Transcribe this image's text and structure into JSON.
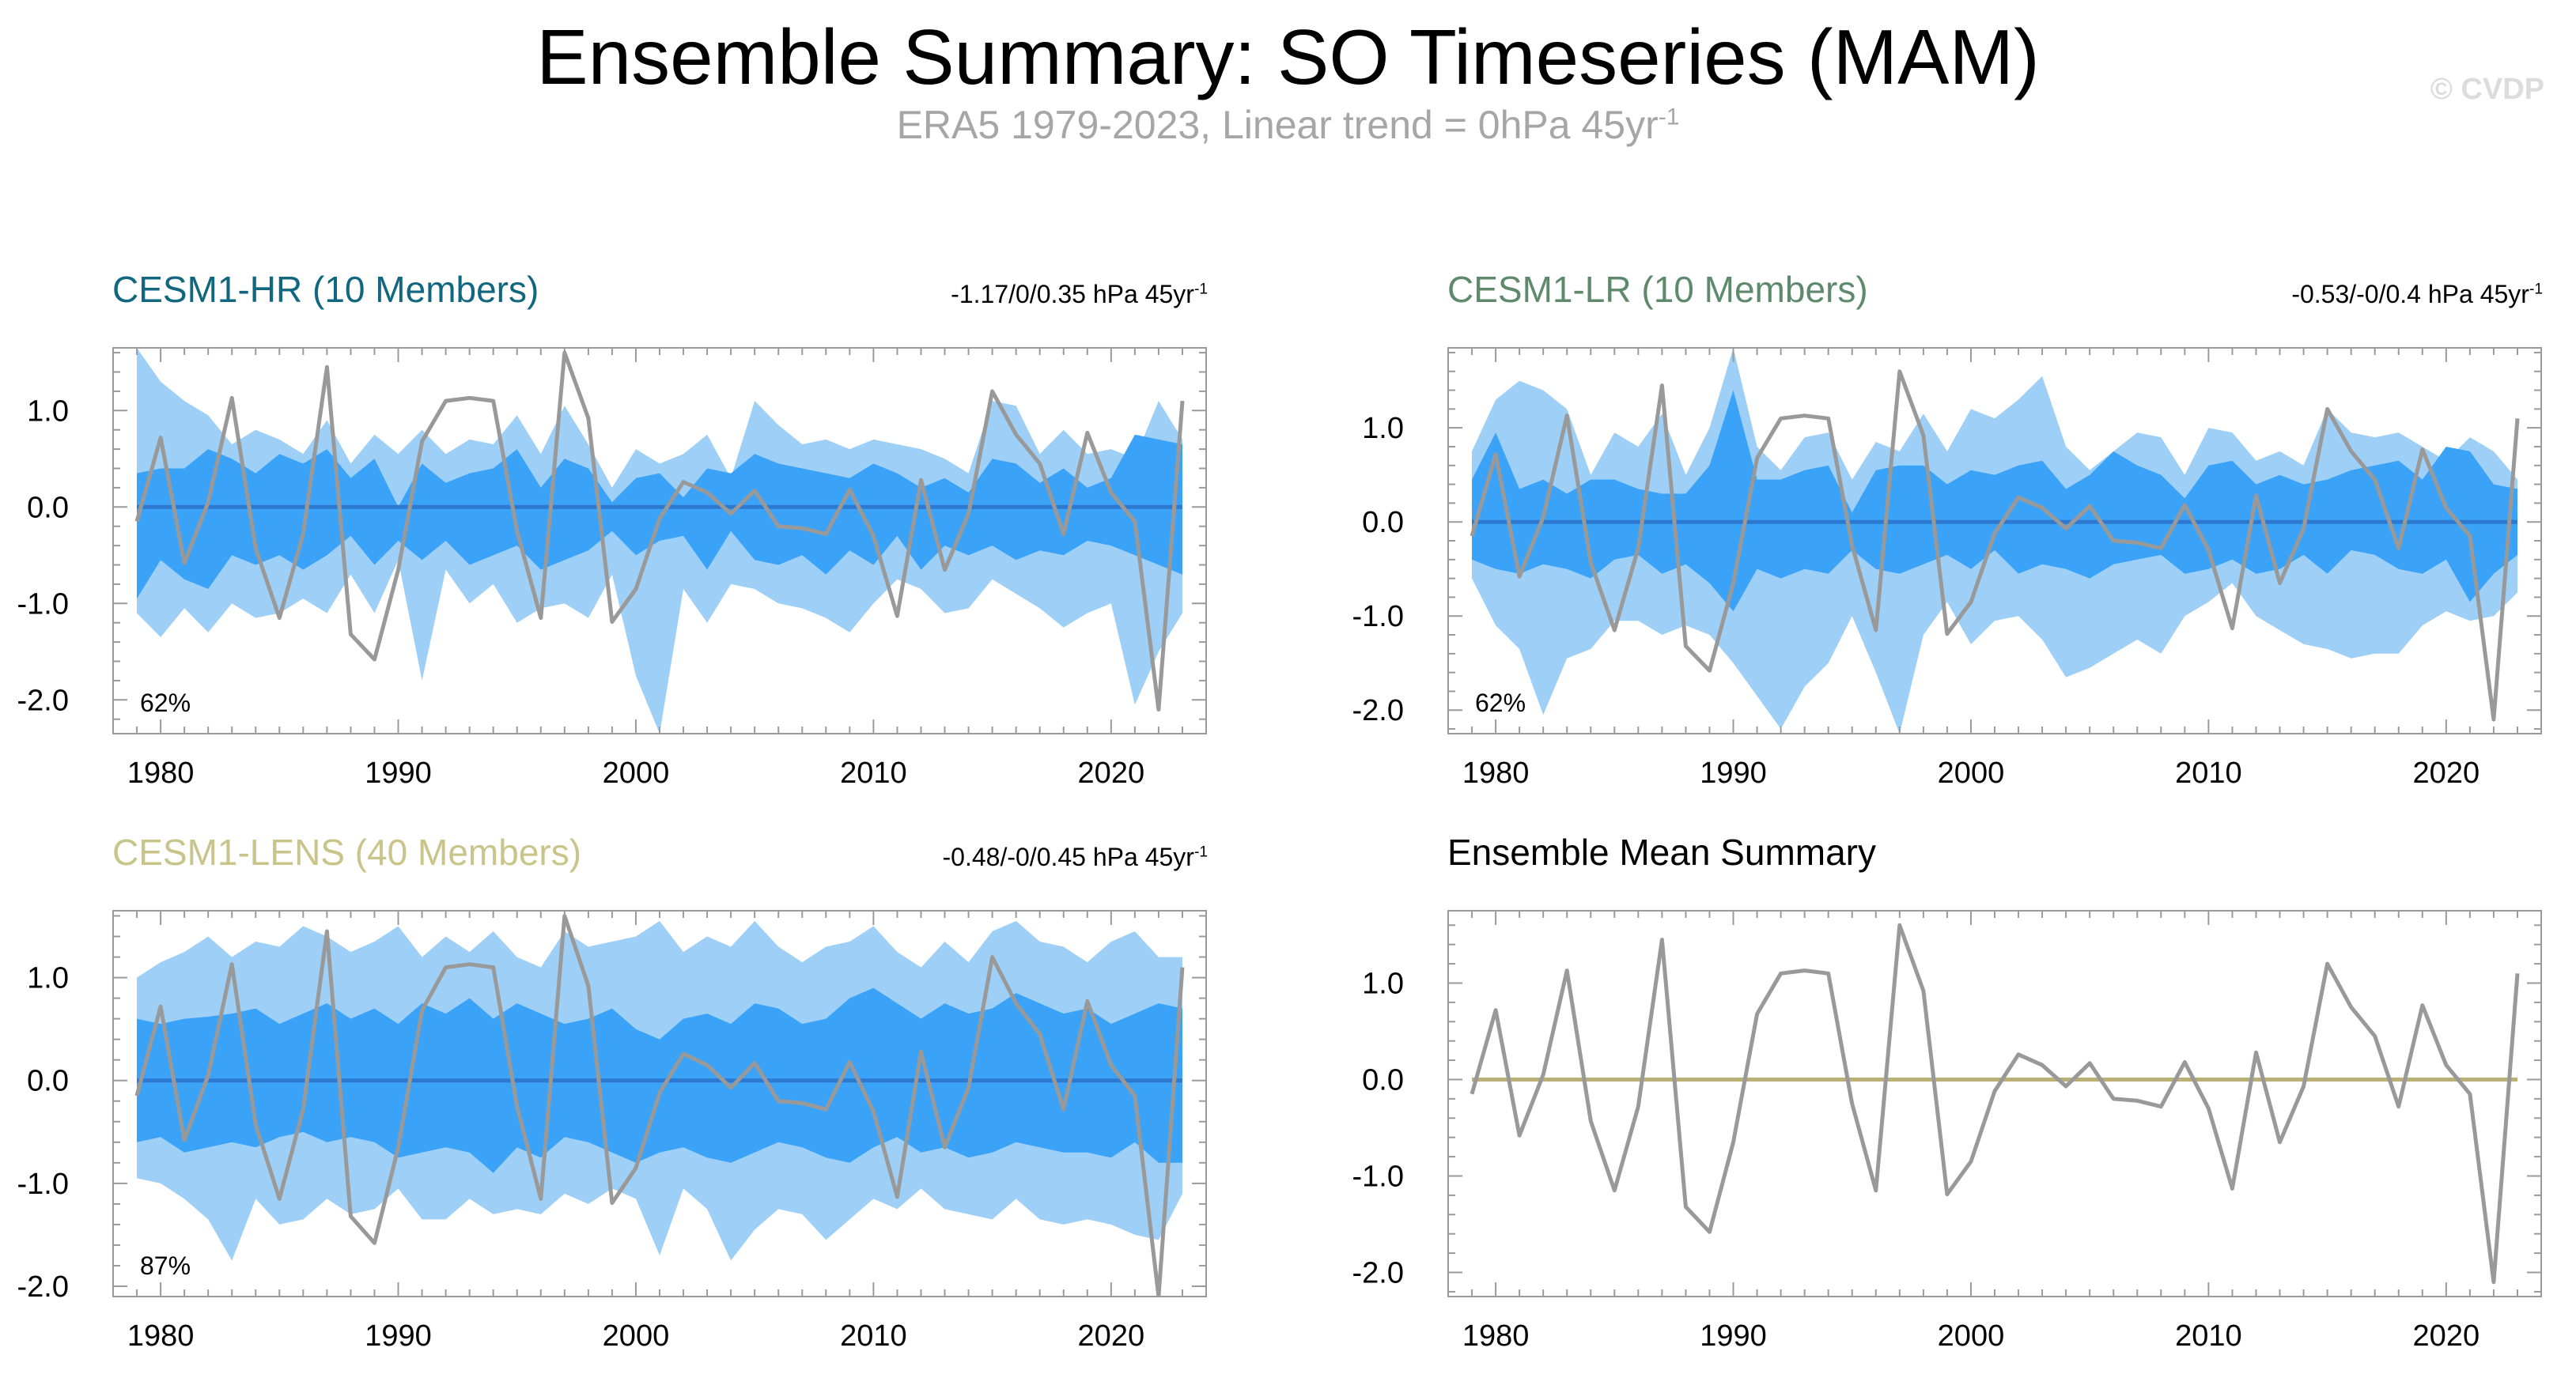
{
  "title": "Ensemble Summary: SO Timeseries (MAM)",
  "subtitle": {
    "text": "ERA5 1979-2023, Linear trend = 0hPa 45yr",
    "sup": "-1"
  },
  "watermark": "© CVDP",
  "colors": {
    "outer_band": "#9ecff7",
    "inner_band": "#3ba3f7",
    "ens_line": "#2d79d0",
    "obs_line": "#999999",
    "mean_line": "#bab075",
    "hr_title": "#11677f",
    "lr_title": "#5e8a6b",
    "lens_title": "#c8c48a",
    "mean_title": "#000000"
  },
  "chart_data": [
    {
      "type": "area",
      "id": "hr",
      "title": "CESM1-HR (10 Members)",
      "trend": {
        "text": "-1.17/0/0.35 hPa 45yr",
        "sup": "-1"
      },
      "percent": "62%",
      "x_range": [
        1978,
        2024
      ],
      "ylim": [
        -2.35,
        1.65
      ],
      "yticks": [
        -2.0,
        -1.0,
        0.0,
        1.0
      ],
      "ytick_labels": [
        "-2.0",
        "-1.0",
        "0.0",
        "1.0"
      ],
      "xticks": [
        1980,
        1990,
        2000,
        2010,
        2020
      ],
      "xtick_labels": [
        "1980",
        "1990",
        "2000",
        "2010",
        "2020"
      ],
      "years": [
        1979,
        1980,
        1981,
        1982,
        1983,
        1984,
        1985,
        1986,
        1987,
        1988,
        1989,
        1990,
        1991,
        1992,
        1993,
        1994,
        1995,
        1996,
        1997,
        1998,
        1999,
        2000,
        2001,
        2002,
        2003,
        2004,
        2005,
        2006,
        2007,
        2008,
        2009,
        2010,
        2011,
        2012,
        2013,
        2014,
        2015,
        2016,
        2017,
        2018,
        2019,
        2020,
        2021,
        2022,
        2023
      ],
      "outer_high": [
        1.65,
        1.3,
        1.1,
        0.95,
        0.65,
        0.8,
        0.7,
        0.55,
        0.9,
        0.45,
        0.75,
        0.55,
        0.8,
        0.55,
        0.7,
        0.65,
        0.95,
        0.55,
        1.05,
        0.65,
        0.2,
        0.6,
        0.45,
        0.55,
        0.75,
        0.3,
        1.1,
        0.85,
        0.65,
        0.7,
        0.6,
        0.7,
        0.65,
        0.6,
        0.5,
        0.35,
        1.1,
        1.05,
        0.55,
        0.8,
        0.55,
        0.6,
        0.5,
        1.1,
        0.7
      ],
      "inner_high": [
        0.35,
        0.4,
        0.4,
        0.6,
        0.5,
        0.35,
        0.55,
        0.45,
        0.6,
        0.3,
        0.5,
        0.0,
        0.45,
        0.25,
        0.35,
        0.4,
        0.6,
        0.2,
        0.5,
        0.4,
        0.05,
        0.3,
        0.35,
        0.1,
        0.4,
        0.35,
        0.55,
        0.45,
        0.4,
        0.35,
        0.3,
        0.45,
        0.35,
        0.2,
        0.3,
        0.15,
        0.5,
        0.45,
        0.25,
        0.4,
        0.2,
        0.3,
        0.75,
        0.7,
        0.65
      ],
      "inner_low": [
        -0.95,
        -0.55,
        -0.75,
        -0.85,
        -0.5,
        -0.6,
        -0.5,
        -0.65,
        -0.5,
        -0.3,
        -0.6,
        -0.35,
        -0.55,
        -0.35,
        -0.6,
        -0.5,
        -0.4,
        -0.65,
        -0.55,
        -0.45,
        -0.25,
        -0.5,
        -0.35,
        -0.3,
        -0.65,
        -0.25,
        -0.55,
        -0.6,
        -0.5,
        -0.7,
        -0.45,
        -0.6,
        -0.3,
        -0.65,
        -0.4,
        -0.5,
        -0.4,
        -0.55,
        -0.45,
        -0.5,
        -0.35,
        -0.4,
        -0.5,
        -0.6,
        -0.7
      ],
      "outer_low": [
        -1.1,
        -1.35,
        -1.05,
        -1.3,
        -1.0,
        -1.15,
        -1.1,
        -0.95,
        -1.1,
        -0.7,
        -1.1,
        -0.55,
        -1.8,
        -0.65,
        -1.0,
        -0.8,
        -1.2,
        -1.05,
        -1.0,
        -1.15,
        -0.7,
        -1.75,
        -2.35,
        -0.85,
        -1.2,
        -0.8,
        -0.85,
        -1.0,
        -1.05,
        -1.15,
        -1.3,
        -1.0,
        -0.75,
        -0.85,
        -1.1,
        -1.05,
        -0.75,
        -0.9,
        -1.05,
        -1.25,
        -1.1,
        -1.0,
        -2.05,
        -1.5,
        -1.1
      ],
      "ens_mean": [
        0,
        0,
        0,
        0,
        0,
        0,
        0,
        0,
        0,
        0,
        0,
        0,
        0,
        0,
        0,
        0,
        0,
        0,
        0,
        0,
        0,
        0,
        0,
        0,
        0,
        0,
        0,
        0,
        0,
        0,
        0,
        0,
        0,
        0,
        0,
        0,
        0,
        0,
        0,
        0,
        0,
        0,
        0,
        0,
        0
      ],
      "obs": [
        -0.15,
        0.72,
        -0.58,
        0.05,
        1.13,
        -0.43,
        -1.15,
        -0.28,
        1.45,
        -1.32,
        -1.58,
        -0.65,
        0.68,
        1.1,
        1.13,
        1.1,
        -0.25,
        -1.15,
        1.6,
        0.92,
        -1.19,
        -0.85,
        -0.12,
        0.26,
        0.15,
        -0.07,
        0.17,
        -0.2,
        -0.22,
        -0.28,
        0.18,
        -0.3,
        -1.13,
        0.28,
        -0.65,
        -0.07,
        1.2,
        0.75,
        0.45,
        -0.28,
        0.77,
        0.15,
        -0.15,
        -2.1,
        1.1
      ]
    },
    {
      "type": "area",
      "id": "lr",
      "title": "CESM1-LR (10 Members)",
      "trend": {
        "text": "-0.53/-0/0.4 hPa 45yr",
        "sup": "-1"
      },
      "percent": "62%",
      "x_range": [
        1978,
        2024
      ],
      "ylim": [
        -2.25,
        1.85
      ],
      "yticks": [
        -2.0,
        -1.0,
        0.0,
        1.0
      ],
      "ytick_labels": [
        "-2.0",
        "-1.0",
        "0.0",
        "1.0"
      ],
      "xticks": [
        1980,
        1990,
        2000,
        2010,
        2020
      ],
      "xtick_labels": [
        "1980",
        "1990",
        "2000",
        "2010",
        "2020"
      ],
      "years": [
        1979,
        1980,
        1981,
        1982,
        1983,
        1984,
        1985,
        1986,
        1987,
        1988,
        1989,
        1990,
        1991,
        1992,
        1993,
        1994,
        1995,
        1996,
        1997,
        1998,
        1999,
        2000,
        2001,
        2002,
        2003,
        2004,
        2005,
        2006,
        2007,
        2008,
        2009,
        2010,
        2011,
        2012,
        2013,
        2014,
        2015,
        2016,
        2017,
        2018,
        2019,
        2020,
        2021,
        2022,
        2023
      ],
      "outer_high": [
        0.75,
        1.3,
        1.5,
        1.4,
        1.2,
        0.5,
        0.95,
        0.8,
        1.15,
        0.5,
        1.0,
        1.85,
        0.8,
        0.55,
        0.9,
        0.95,
        0.45,
        0.85,
        0.75,
        1.15,
        0.75,
        1.2,
        1.1,
        1.3,
        1.55,
        0.8,
        0.55,
        0.75,
        0.95,
        0.9,
        0.5,
        1.0,
        0.95,
        0.65,
        0.75,
        0.6,
        1.2,
        0.95,
        0.9,
        0.95,
        0.8,
        0.65,
        0.9,
        0.75,
        0.45
      ],
      "inner_high": [
        0.45,
        0.95,
        0.35,
        0.45,
        0.3,
        0.45,
        0.45,
        0.35,
        0.3,
        0.3,
        0.6,
        1.4,
        0.45,
        0.45,
        0.55,
        0.6,
        0.1,
        0.55,
        0.6,
        0.6,
        0.4,
        0.55,
        0.5,
        0.6,
        0.65,
        0.35,
        0.5,
        0.75,
        0.6,
        0.5,
        0.25,
        0.6,
        0.65,
        0.4,
        0.5,
        0.4,
        0.45,
        0.55,
        0.6,
        0.65,
        0.45,
        0.8,
        0.75,
        0.4,
        0.35
      ],
      "inner_low": [
        -0.4,
        -0.5,
        -0.55,
        -0.45,
        -0.5,
        -0.6,
        -0.4,
        -0.35,
        -0.55,
        -0.45,
        -0.65,
        -0.95,
        -0.5,
        -0.6,
        -0.5,
        -0.55,
        -0.3,
        -0.5,
        -0.55,
        -0.45,
        -0.35,
        -0.5,
        -0.3,
        -0.55,
        -0.45,
        -0.5,
        -0.6,
        -0.45,
        -0.4,
        -0.35,
        -0.55,
        -0.5,
        -0.4,
        -0.55,
        -0.5,
        -0.35,
        -0.55,
        -0.3,
        -0.35,
        -0.5,
        -0.55,
        -0.4,
        -0.85,
        -0.55,
        -0.35
      ],
      "outer_low": [
        -0.6,
        -1.1,
        -1.35,
        -2.05,
        -1.45,
        -1.35,
        -1.05,
        -1.05,
        -1.2,
        -1.1,
        -1.2,
        -1.5,
        -1.85,
        -2.2,
        -1.75,
        -1.5,
        -1.0,
        -1.6,
        -2.25,
        -1.2,
        -0.85,
        -1.3,
        -1.05,
        -1.0,
        -1.25,
        -1.65,
        -1.55,
        -1.4,
        -1.25,
        -1.4,
        -1.0,
        -0.85,
        -0.65,
        -1.0,
        -1.15,
        -1.3,
        -1.35,
        -1.45,
        -1.4,
        -1.4,
        -1.1,
        -0.95,
        -1.05,
        -1.0,
        -0.75
      ],
      "ens_mean": [
        0,
        0,
        0,
        0,
        0,
        0,
        0,
        0,
        0,
        0,
        0,
        0,
        0,
        0,
        0,
        0,
        0,
        0,
        0,
        0,
        0,
        0,
        0,
        0,
        0,
        0,
        0,
        0,
        0,
        0,
        0,
        0,
        0,
        0,
        0,
        0,
        0,
        0,
        0,
        0,
        0,
        0,
        0,
        0,
        0
      ],
      "obs": [
        -0.15,
        0.72,
        -0.58,
        0.05,
        1.13,
        -0.43,
        -1.15,
        -0.28,
        1.45,
        -1.32,
        -1.58,
        -0.65,
        0.68,
        1.1,
        1.13,
        1.1,
        -0.25,
        -1.15,
        1.6,
        0.92,
        -1.19,
        -0.85,
        -0.12,
        0.26,
        0.15,
        -0.07,
        0.17,
        -0.2,
        -0.22,
        -0.28,
        0.18,
        -0.3,
        -1.13,
        0.28,
        -0.65,
        -0.07,
        1.2,
        0.75,
        0.45,
        -0.28,
        0.77,
        0.15,
        -0.15,
        -2.1,
        1.1
      ]
    },
    {
      "type": "area",
      "id": "lens",
      "title": "CESM1-LENS (40 Members)",
      "trend": {
        "text": "-0.48/-0/0.45 hPa 45yr",
        "sup": "-1"
      },
      "percent": "87%",
      "x_range": [
        1978,
        2024
      ],
      "ylim": [
        -2.1,
        1.65
      ],
      "yticks": [
        -2.0,
        -1.0,
        0.0,
        1.0
      ],
      "ytick_labels": [
        "-2.0",
        "-1.0",
        "0.0",
        "1.0"
      ],
      "xticks": [
        1980,
        1990,
        2000,
        2010,
        2020
      ],
      "xtick_labels": [
        "1980",
        "1990",
        "2000",
        "2010",
        "2020"
      ],
      "years": [
        1979,
        1980,
        1981,
        1982,
        1983,
        1984,
        1985,
        1986,
        1987,
        1988,
        1989,
        1990,
        1991,
        1992,
        1993,
        1994,
        1995,
        1996,
        1997,
        1998,
        1999,
        2000,
        2001,
        2002,
        2003,
        2004,
        2005,
        2006,
        2007,
        2008,
        2009,
        2010,
        2011,
        2012,
        2013,
        2014,
        2015,
        2016,
        2017,
        2018,
        2019,
        2020,
        2021,
        2022,
        2023
      ],
      "outer_high": [
        1.0,
        1.15,
        1.25,
        1.4,
        1.2,
        1.35,
        1.3,
        1.5,
        1.4,
        1.25,
        1.35,
        1.5,
        1.2,
        1.4,
        1.25,
        1.45,
        1.2,
        1.1,
        1.45,
        1.3,
        1.35,
        1.4,
        1.55,
        1.25,
        1.4,
        1.3,
        1.55,
        1.3,
        1.15,
        1.3,
        1.35,
        1.5,
        1.25,
        1.1,
        1.35,
        1.15,
        1.45,
        1.55,
        1.35,
        1.3,
        1.15,
        1.35,
        1.45,
        1.2,
        1.2
      ],
      "inner_high": [
        0.6,
        0.55,
        0.6,
        0.62,
        0.65,
        0.7,
        0.55,
        0.65,
        0.75,
        0.6,
        0.7,
        0.55,
        0.75,
        0.65,
        0.8,
        0.6,
        0.75,
        0.65,
        0.55,
        0.6,
        0.7,
        0.5,
        0.4,
        0.6,
        0.65,
        0.55,
        0.75,
        0.7,
        0.55,
        0.6,
        0.8,
        0.9,
        0.75,
        0.6,
        0.75,
        0.65,
        0.7,
        0.85,
        0.75,
        0.65,
        0.7,
        0.55,
        0.65,
        0.75,
        0.7
      ],
      "inner_low": [
        -0.6,
        -0.55,
        -0.7,
        -0.65,
        -0.6,
        -0.65,
        -0.55,
        -0.5,
        -0.6,
        -0.55,
        -0.6,
        -0.75,
        -0.7,
        -0.65,
        -0.7,
        -0.9,
        -0.65,
        -0.75,
        -0.55,
        -0.6,
        -0.7,
        -0.8,
        -0.7,
        -0.65,
        -0.75,
        -0.8,
        -0.7,
        -0.6,
        -0.65,
        -0.75,
        -0.8,
        -0.65,
        -0.55,
        -0.7,
        -0.65,
        -0.75,
        -0.7,
        -0.6,
        -0.65,
        -0.7,
        -0.7,
        -0.75,
        -0.6,
        -0.8,
        -0.8
      ],
      "outer_low": [
        -0.95,
        -1.0,
        -1.15,
        -1.35,
        -1.75,
        -1.15,
        -1.4,
        -1.35,
        -1.15,
        -1.3,
        -1.25,
        -1.05,
        -1.35,
        -1.35,
        -1.15,
        -1.3,
        -1.25,
        -1.3,
        -1.1,
        -1.2,
        -1.05,
        -1.15,
        -1.7,
        -1.05,
        -1.25,
        -1.75,
        -1.45,
        -1.25,
        -1.3,
        -1.55,
        -1.35,
        -1.15,
        -1.25,
        -1.05,
        -1.25,
        -1.3,
        -1.35,
        -1.15,
        -1.35,
        -1.4,
        -1.35,
        -1.4,
        -1.5,
        -1.55,
        -1.1
      ],
      "ens_mean": [
        0,
        0,
        0,
        0,
        0,
        0,
        0,
        0,
        0,
        0,
        0,
        0,
        0,
        0,
        0,
        0,
        0,
        0,
        0,
        0,
        0,
        0,
        0,
        0,
        0,
        0,
        0,
        0,
        0,
        0,
        0,
        0,
        0,
        0,
        0,
        0,
        0,
        0,
        0,
        0,
        0,
        0,
        0,
        0,
        0
      ],
      "obs": [
        -0.15,
        0.72,
        -0.58,
        0.05,
        1.13,
        -0.43,
        -1.15,
        -0.28,
        1.45,
        -1.32,
        -1.58,
        -0.65,
        0.68,
        1.1,
        1.13,
        1.1,
        -0.25,
        -1.15,
        1.6,
        0.92,
        -1.19,
        -0.85,
        -0.12,
        0.26,
        0.15,
        -0.07,
        0.17,
        -0.2,
        -0.22,
        -0.28,
        0.18,
        -0.3,
        -1.13,
        0.28,
        -0.65,
        -0.07,
        1.2,
        0.75,
        0.45,
        -0.28,
        0.77,
        0.15,
        -0.15,
        -2.1,
        1.1
      ]
    },
    {
      "type": "line",
      "id": "mean",
      "title": "Ensemble Mean Summary",
      "x_range": [
        1978,
        2024
      ],
      "ylim": [
        -2.25,
        1.75
      ],
      "yticks": [
        -2.0,
        -1.0,
        0.0,
        1.0
      ],
      "ytick_labels": [
        "-2.0",
        "-1.0",
        "0.0",
        "1.0"
      ],
      "xticks": [
        1980,
        1990,
        2000,
        2010,
        2020
      ],
      "xtick_labels": [
        "1980",
        "1990",
        "2000",
        "2010",
        "2020"
      ],
      "years": [
        1979,
        1980,
        1981,
        1982,
        1983,
        1984,
        1985,
        1986,
        1987,
        1988,
        1989,
        1990,
        1991,
        1992,
        1993,
        1994,
        1995,
        1996,
        1997,
        1998,
        1999,
        2000,
        2001,
        2002,
        2003,
        2004,
        2005,
        2006,
        2007,
        2008,
        2009,
        2010,
        2011,
        2012,
        2013,
        2014,
        2015,
        2016,
        2017,
        2018,
        2019,
        2020,
        2021,
        2022,
        2023
      ],
      "ens_mean": [
        0,
        0,
        0,
        0,
        0,
        0,
        0,
        0,
        0,
        0,
        0,
        0,
        0,
        0,
        0,
        0,
        0,
        0,
        0,
        0,
        0,
        0,
        0,
        0,
        0,
        0,
        0,
        0,
        0,
        0,
        0,
        0,
        0,
        0,
        0,
        0,
        0,
        0,
        0,
        0,
        0,
        0,
        0,
        0,
        0
      ],
      "obs": [
        -0.15,
        0.72,
        -0.58,
        0.05,
        1.13,
        -0.43,
        -1.15,
        -0.28,
        1.45,
        -1.32,
        -1.58,
        -0.65,
        0.68,
        1.1,
        1.13,
        1.1,
        -0.25,
        -1.15,
        1.6,
        0.92,
        -1.19,
        -0.85,
        -0.12,
        0.26,
        0.15,
        -0.07,
        0.17,
        -0.2,
        -0.22,
        -0.28,
        0.18,
        -0.3,
        -1.13,
        0.28,
        -0.65,
        -0.07,
        1.2,
        0.75,
        0.45,
        -0.28,
        0.77,
        0.15,
        -0.15,
        -2.1,
        1.1
      ]
    }
  ]
}
